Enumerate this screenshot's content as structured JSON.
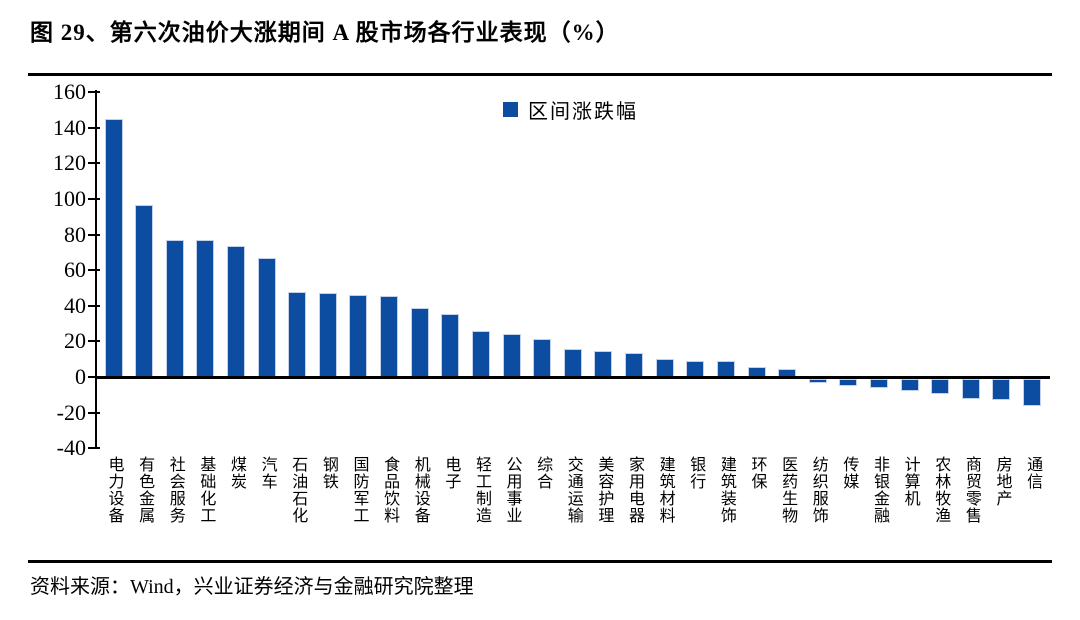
{
  "page": {
    "title": "图 29、第六次油价大涨期间 A 股市场各行业表现（%）",
    "source": "资料来源：Wind，兴业证券经济与金融研究院整理"
  },
  "legend": {
    "label": "区间涨跌幅",
    "swatch_color": "#0C4DA2"
  },
  "colors": {
    "bar": "#0C4DA2",
    "bar_edge": "#c3d2e9",
    "axis": "#000000"
  },
  "chart_data": {
    "type": "bar",
    "title": "图 29、第六次油价大涨期间 A 股市场各行业表现（%）",
    "legend": [
      "区间涨跌幅"
    ],
    "legend_position": "top-center-inside",
    "grid": false,
    "ylim": [
      -40,
      160
    ],
    "yticks": [
      160,
      140,
      120,
      100,
      80,
      60,
      40,
      20,
      0,
      -20,
      -40
    ],
    "xlabel": "",
    "ylabel": "",
    "bar_color": "#0C4DA2",
    "categories": [
      "电力设备",
      "有色金属",
      "社会服务",
      "基础化工",
      "煤炭",
      "汽车",
      "石油石化",
      "钢铁",
      "国防军工",
      "食品饮料",
      "机械设备",
      "电子",
      "轻工制造",
      "公用事业",
      "综合",
      "交通运输",
      "美容护理",
      "家用电器",
      "建筑材料",
      "银行",
      "建筑装饰",
      "环保",
      "医药生物",
      "纺织服饰",
      "传媒",
      "非银金融",
      "计算机",
      "农林牧渔",
      "商贸零售",
      "房地产",
      "通信"
    ],
    "values": [
      145,
      96.5,
      77,
      77,
      73.5,
      67,
      48,
      47,
      46,
      45.5,
      39,
      35.5,
      26,
      24,
      21.5,
      16,
      14.5,
      13.5,
      10,
      9,
      9,
      5.5,
      4.5,
      -2.5,
      -4,
      -5.5,
      -7,
      -8.5,
      -11.5,
      -12,
      -15.5
    ]
  }
}
